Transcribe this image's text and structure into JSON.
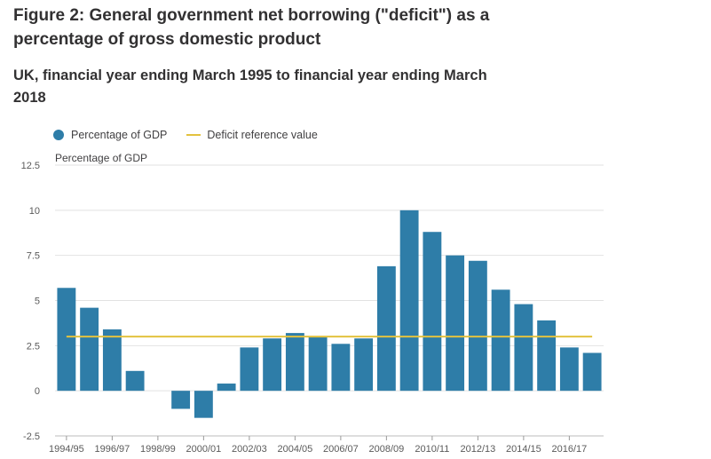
{
  "figure": {
    "title": "Figure 2: General government net borrowing (\"deficit\") as a percentage of gross domestic product",
    "subtitle": "UK, financial year ending March 1995 to financial year ending March 2018"
  },
  "legend": [
    {
      "label": "Percentage of GDP",
      "color": "#2e7da8",
      "kind": "dot"
    },
    {
      "label": "Deficit reference value",
      "color": "#e3c23f",
      "kind": "line"
    }
  ],
  "chart_data": {
    "type": "bar",
    "title": "Figure 2: General government net borrowing (\"deficit\") as a percentage of gross domestic product",
    "subtitle": "UK, financial year ending March 1995 to financial year ending March 2018",
    "ylabel": "Percentage of GDP",
    "xlabel": "",
    "ylim": [
      -2.5,
      12.5
    ],
    "yticks": [
      -2.5,
      0,
      2.5,
      5,
      7.5,
      10,
      12.5
    ],
    "ytick_labels": [
      "-2.5",
      "0",
      "2.5",
      "5",
      "7.5",
      "10",
      "12.5"
    ],
    "grid": true,
    "legend_position": "top-left",
    "categories": [
      "1994/95",
      "1995/96",
      "1996/97",
      "1997/98",
      "1998/99",
      "1999/00",
      "2000/01",
      "2001/02",
      "2002/03",
      "2003/04",
      "2004/05",
      "2005/06",
      "2006/07",
      "2007/08",
      "2008/09",
      "2009/10",
      "2010/11",
      "2011/12",
      "2012/13",
      "2013/14",
      "2014/15",
      "2015/16",
      "2016/17",
      "2017/18"
    ],
    "xtick_labels": [
      "1994/95",
      "1996/97",
      "1998/99",
      "2000/01",
      "2002/03",
      "2004/05",
      "2006/07",
      "2008/09",
      "2010/11",
      "2012/13",
      "2014/15",
      "2016/17"
    ],
    "series": [
      {
        "name": "Percentage of GDP",
        "color": "#2e7da8",
        "values": [
          5.7,
          4.6,
          3.4,
          1.1,
          0.0,
          -1.0,
          -1.5,
          0.4,
          2.4,
          2.9,
          3.2,
          3.0,
          2.6,
          2.9,
          6.9,
          10.0,
          8.8,
          7.5,
          7.2,
          5.6,
          4.8,
          3.9,
          2.4,
          2.1
        ]
      },
      {
        "name": "Deficit reference value",
        "color": "#e3c23f",
        "type": "line",
        "value": 3.0
      }
    ]
  }
}
